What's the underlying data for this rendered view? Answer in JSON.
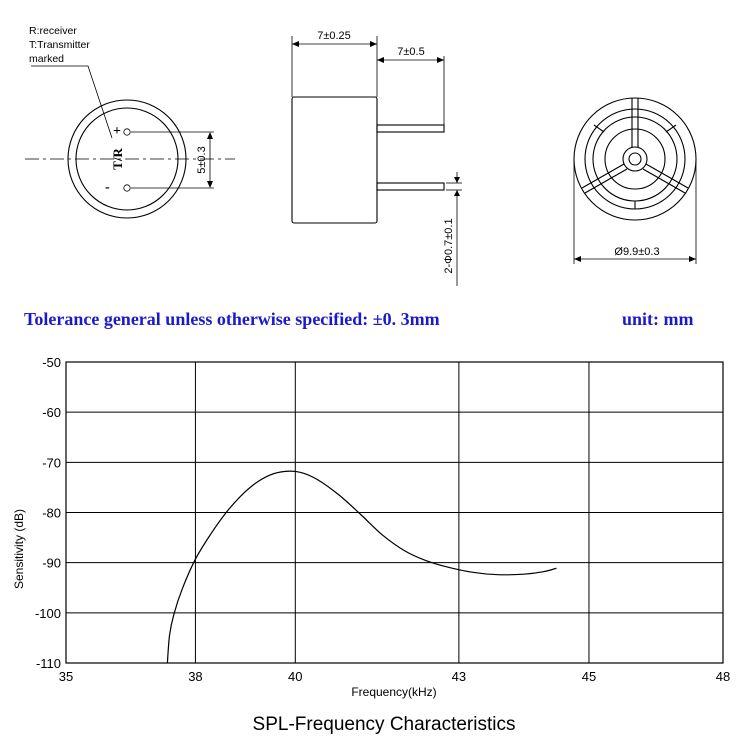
{
  "drawing": {
    "marking_note": [
      "R:receiver",
      "T:Transmitter",
      "marked"
    ],
    "pin_marking": "T/R",
    "plus_sign": "+",
    "minus_sign": "-",
    "dim_body_width": "7±0.25",
    "dim_pin_length": "7±0.5",
    "dim_pin_spacing": "5±0.3",
    "dim_pin_diameter": "2-Φ0.7±0.1",
    "dim_outer_diameter": "Ø9.9±0.3"
  },
  "tolerance": {
    "text": "Tolerance general unless otherwise specified:  ±0. 3mm",
    "unit": "unit:  mm",
    "color": "#1a1acc"
  },
  "chart_data": {
    "type": "line",
    "title": "SPL-Frequency Characteristics",
    "xlabel": "Frequency(kHz)",
    "ylabel": "Sensitivity (dB)",
    "x_tick_labels": [
      "35",
      "38",
      "40",
      "43",
      "45",
      "48"
    ],
    "y_tick_labels": [
      "-50",
      "-60",
      "-70",
      "-80",
      "-90",
      "-100",
      "-110"
    ],
    "y_ticks": [
      -50,
      -60,
      -70,
      -80,
      -90,
      -100,
      -110
    ],
    "ylim": [
      -110,
      -50
    ],
    "grid": true,
    "series": [
      {
        "x": [
          37.35,
          37.4,
          37.5,
          37.7,
          38.0,
          38.3,
          38.6,
          38.9,
          39.2,
          39.5,
          39.8,
          40.1,
          40.4,
          40.8,
          41.2,
          41.6,
          42.0,
          42.4,
          42.8,
          43.2,
          43.6,
          44.0,
          44.3,
          44.5
        ],
        "y": [
          -110,
          -104.5,
          -100.3,
          -95.1,
          -89.3,
          -84.4,
          -80.2,
          -76.8,
          -74.2,
          -72.5,
          -71.8,
          -72.0,
          -73.4,
          -76.5,
          -80.4,
          -84.5,
          -87.6,
          -89.6,
          -90.9,
          -91.9,
          -92.4,
          -92.3,
          -91.8,
          -91.1
        ]
      }
    ]
  }
}
